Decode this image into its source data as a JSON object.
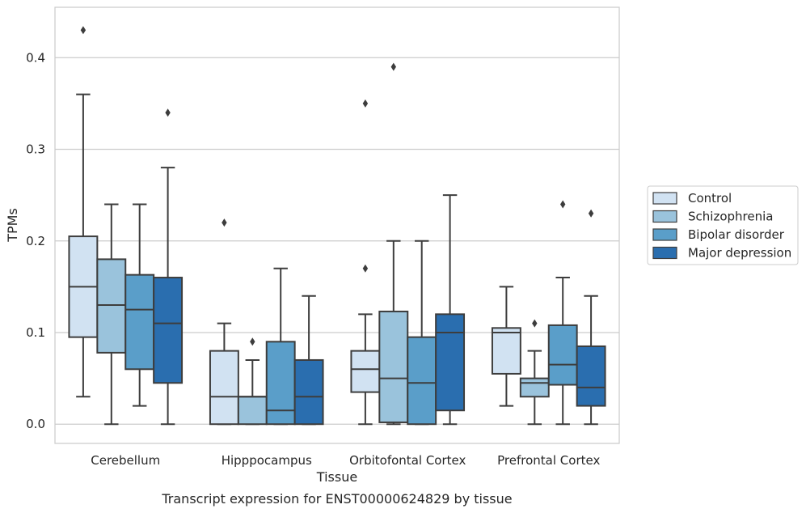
{
  "chart_data": {
    "type": "box",
    "title": "",
    "caption": "Transcript expression for ENST00000624829 by tissue",
    "xlabel": "Tissue",
    "ylabel": "TPMs",
    "ylim": [
      -0.021,
      0.455
    ],
    "yticks": [
      "0.0",
      "0.1",
      "0.2",
      "0.3",
      "0.4"
    ],
    "ytick_values": [
      0.0,
      0.1,
      0.2,
      0.3,
      0.4
    ],
    "grid": "horizontal",
    "legend_position": "right",
    "categories": [
      "Cerebellum",
      "Hipppocampus",
      "Orbitofontal Cortex",
      "Prefrontal Cortex"
    ],
    "series": [
      {
        "name": "Control",
        "color": "#d1e2f2",
        "boxes": [
          {
            "whislo": 0.03,
            "q1": 0.095,
            "med": 0.15,
            "q3": 0.205,
            "whishi": 0.36,
            "fliers": [
              0.43
            ]
          },
          {
            "whislo": 0.0,
            "q1": 0.0,
            "med": 0.03,
            "q3": 0.08,
            "whishi": 0.11,
            "fliers": [
              0.22
            ]
          },
          {
            "whislo": 0.0,
            "q1": 0.035,
            "med": 0.06,
            "q3": 0.08,
            "whishi": 0.12,
            "fliers": [
              0.17,
              0.35
            ]
          },
          {
            "whislo": 0.02,
            "q1": 0.055,
            "med": 0.1,
            "q3": 0.105,
            "whishi": 0.15,
            "fliers": []
          }
        ]
      },
      {
        "name": "Schizophrenia",
        "color": "#9ac3dc",
        "boxes": [
          {
            "whislo": 0.0,
            "q1": 0.078,
            "med": 0.13,
            "q3": 0.18,
            "whishi": 0.24,
            "fliers": []
          },
          {
            "whislo": 0.0,
            "q1": 0.0,
            "med": 0.03,
            "q3": 0.03,
            "whishi": 0.07,
            "fliers": [
              0.09
            ]
          },
          {
            "whislo": 0.0,
            "q1": 0.002,
            "med": 0.05,
            "q3": 0.123,
            "whishi": 0.2,
            "fliers": [
              0.39
            ]
          },
          {
            "whislo": 0.0,
            "q1": 0.03,
            "med": 0.045,
            "q3": 0.05,
            "whishi": 0.08,
            "fliers": [
              0.11
            ]
          }
        ]
      },
      {
        "name": "Bipolar disorder",
        "color": "#5a9ec9",
        "boxes": [
          {
            "whislo": 0.02,
            "q1": 0.06,
            "med": 0.125,
            "q3": 0.163,
            "whishi": 0.24,
            "fliers": []
          },
          {
            "whislo": 0.0,
            "q1": 0.0,
            "med": 0.015,
            "q3": 0.09,
            "whishi": 0.17,
            "fliers": []
          },
          {
            "whislo": 0.0,
            "q1": 0.0,
            "med": 0.045,
            "q3": 0.095,
            "whishi": 0.2,
            "fliers": []
          },
          {
            "whislo": 0.0,
            "q1": 0.043,
            "med": 0.065,
            "q3": 0.108,
            "whishi": 0.16,
            "fliers": [
              0.24
            ]
          }
        ]
      },
      {
        "name": "Major depression",
        "color": "#2a6eaf",
        "boxes": [
          {
            "whislo": 0.0,
            "q1": 0.045,
            "med": 0.11,
            "q3": 0.16,
            "whishi": 0.28,
            "fliers": [
              0.34
            ]
          },
          {
            "whislo": 0.0,
            "q1": 0.0,
            "med": 0.03,
            "q3": 0.07,
            "whishi": 0.14,
            "fliers": []
          },
          {
            "whislo": 0.0,
            "q1": 0.015,
            "med": 0.1,
            "q3": 0.12,
            "whishi": 0.25,
            "fliers": []
          },
          {
            "whislo": 0.0,
            "q1": 0.02,
            "med": 0.04,
            "q3": 0.085,
            "whishi": 0.14,
            "fliers": [
              0.23
            ]
          }
        ]
      }
    ]
  }
}
